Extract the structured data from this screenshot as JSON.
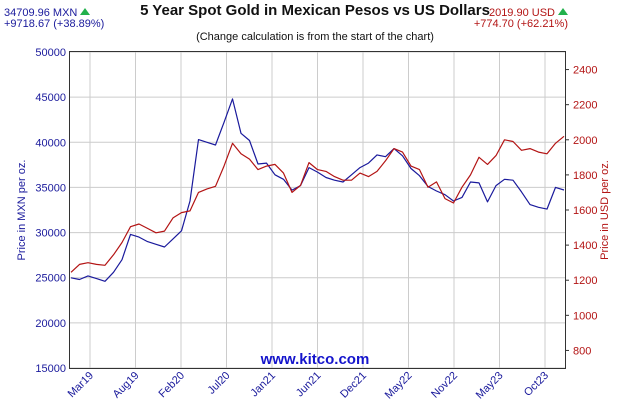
{
  "header": {
    "title": "5 Year Spot Gold in Mexican Pesos vs US Dollars",
    "subtitle": "(Change calculation is from the start of the chart)",
    "mxn_price": "34709.96 MXN",
    "mxn_change": "+9718.67 (+38.89%)",
    "usd_price": "2019.90 USD",
    "usd_change": "+774.70 (+62.21%)"
  },
  "watermark": "www.kitco.com",
  "colors": {
    "mxn": "#1a1a9c",
    "usd": "#b31414",
    "grid": "#cccccc",
    "up": "#22b14c"
  },
  "chart_data": {
    "type": "line",
    "title": "5 Year Spot Gold in Mexican Pesos vs US Dollars",
    "x_tick_labels": [
      "Mar19",
      "Aug19",
      "Feb20",
      "Jul20",
      "Jan21",
      "Jun21",
      "Dec21",
      "May22",
      "Nov22",
      "May23",
      "Oct23"
    ],
    "x": [
      "Nov18",
      "Jan19",
      "Mar19",
      "Apr19",
      "May19",
      "Jun19",
      "Jul19",
      "Aug19",
      "Sep19",
      "Oct19",
      "Nov19",
      "Dec19",
      "Jan20",
      "Feb20",
      "Mar20",
      "Apr20",
      "May20",
      "Jun20",
      "Jul20",
      "Aug20",
      "Sep20",
      "Oct20",
      "Nov20",
      "Dec20",
      "Jan21",
      "Feb21",
      "Mar21",
      "Apr21",
      "May21",
      "Jun21",
      "Jul21",
      "Aug21",
      "Sep21",
      "Oct21",
      "Nov21",
      "Dec21",
      "Jan22",
      "Feb22",
      "Mar22",
      "Apr22",
      "May22",
      "Jun22",
      "Jul22",
      "Aug22",
      "Sep22",
      "Oct22",
      "Nov22",
      "Dec22",
      "Jan23",
      "Feb23",
      "Mar23",
      "Apr23",
      "May23",
      "Jun23",
      "Jul23",
      "Aug23",
      "Sep23",
      "Oct23",
      "Nov23"
    ],
    "y_left": {
      "label": "Price in MXN per oz.",
      "ticks": [
        15000,
        20000,
        25000,
        30000,
        35000,
        40000,
        45000,
        50000
      ],
      "ylim": [
        15000,
        50000
      ]
    },
    "y_right": {
      "label": "Price in USD per oz.",
      "ticks": [
        800,
        1000,
        1200,
        1400,
        1600,
        1800,
        2000,
        2200,
        2400
      ],
      "ylim": [
        700,
        2500
      ]
    },
    "grid": true,
    "series": [
      {
        "name": "MXN",
        "axis": "left",
        "values": [
          24990,
          24800,
          25200,
          24900,
          24600,
          25600,
          27000,
          29800,
          29500,
          29000,
          28700,
          28400,
          29300,
          30200,
          33500,
          40300,
          40000,
          39700,
          42200,
          44800,
          41000,
          40200,
          37600,
          37700,
          36400,
          35900,
          34700,
          35200,
          37200,
          36700,
          36100,
          35800,
          35600,
          36400,
          37200,
          37700,
          38600,
          38400,
          39300,
          38500,
          37100,
          36300,
          35100,
          34600,
          34200,
          33500,
          33900,
          35600,
          35500,
          33400,
          35200,
          35900,
          35800,
          34500,
          33100,
          32800,
          32600,
          35000,
          34710
        ]
      },
      {
        "name": "USD",
        "axis": "right",
        "values": [
          1245,
          1290,
          1300,
          1290,
          1285,
          1345,
          1415,
          1505,
          1520,
          1495,
          1470,
          1480,
          1555,
          1585,
          1595,
          1700,
          1720,
          1735,
          1850,
          1980,
          1920,
          1890,
          1830,
          1850,
          1860,
          1810,
          1700,
          1740,
          1870,
          1830,
          1820,
          1790,
          1770,
          1770,
          1810,
          1790,
          1820,
          1880,
          1950,
          1930,
          1850,
          1830,
          1730,
          1760,
          1665,
          1640,
          1730,
          1800,
          1900,
          1860,
          1910,
          2000,
          1990,
          1940,
          1950,
          1930,
          1920,
          1980,
          2020
        ]
      }
    ]
  }
}
